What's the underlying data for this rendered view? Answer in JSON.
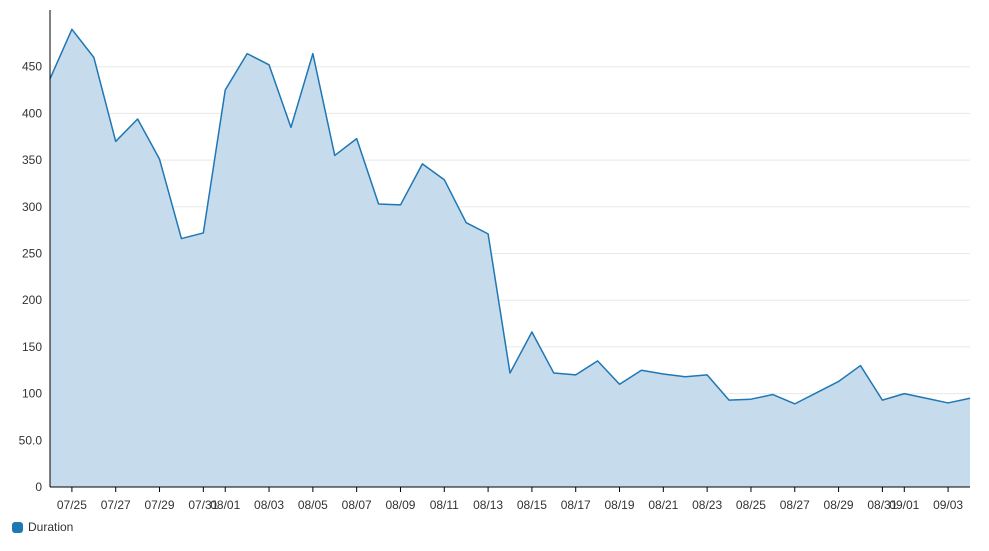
{
  "chart_data": {
    "type": "area",
    "x": [
      "07/24",
      "07/25",
      "07/26",
      "07/27",
      "07/28",
      "07/29",
      "07/30",
      "07/31",
      "08/01",
      "08/02",
      "08/03",
      "08/04",
      "08/05",
      "08/06",
      "08/07",
      "08/08",
      "08/09",
      "08/10",
      "08/11",
      "08/12",
      "08/13",
      "08/14",
      "08/15",
      "08/16",
      "08/17",
      "08/18",
      "08/19",
      "08/20",
      "08/21",
      "08/22",
      "08/23",
      "08/24",
      "08/25",
      "08/26",
      "08/27",
      "08/28",
      "08/29",
      "08/30",
      "08/31",
      "09/01",
      "09/02",
      "09/03",
      "09/04"
    ],
    "series": [
      {
        "name": "Duration",
        "color": "#1f77b4",
        "values": [
          437,
          490,
          460,
          370,
          394,
          351,
          266,
          272,
          425,
          464,
          452,
          385,
          464,
          355,
          373,
          303,
          302,
          346,
          329,
          283,
          271,
          122,
          166,
          122,
          120,
          135,
          110,
          125,
          121,
          118,
          120,
          93,
          94,
          99,
          89,
          101,
          113,
          130,
          93,
          100,
          95,
          90,
          95
        ]
      }
    ],
    "xticks": [
      "07/25",
      "07/27",
      "07/29",
      "07/31",
      "08/01",
      "08/03",
      "08/05",
      "08/07",
      "08/09",
      "08/11",
      "08/13",
      "08/15",
      "08/17",
      "08/19",
      "08/21",
      "08/23",
      "08/25",
      "08/27",
      "08/29",
      "08/31",
      "09/01",
      "09/03"
    ],
    "yticks": [
      "0",
      "50.0",
      "100",
      "150",
      "200",
      "250",
      "300",
      "350",
      "400",
      "450"
    ],
    "ytick_values": [
      0,
      50,
      100,
      150,
      200,
      250,
      300,
      350,
      400,
      450
    ],
    "ylim": [
      0,
      500
    ],
    "grid": true,
    "legend": "bottom-left",
    "fill_color": "#c6dbec",
    "line_color": "#1f77b4"
  }
}
